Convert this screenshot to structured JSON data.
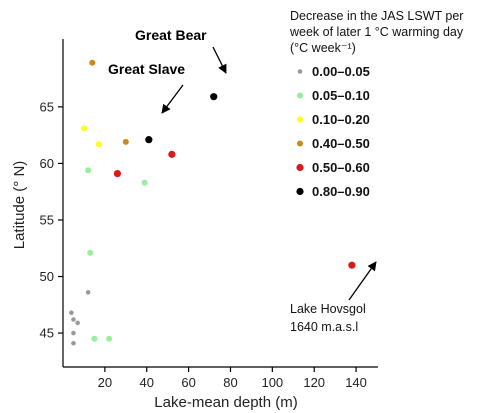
{
  "chart_data": {
    "type": "scatter",
    "xlabel": "Lake-mean depth (m)",
    "ylabel": "Latitude (° N)",
    "xlim": [
      0,
      150
    ],
    "ylim": [
      42,
      71
    ],
    "xticks": [
      20,
      40,
      60,
      80,
      100,
      120,
      140
    ],
    "yticks": [
      45,
      50,
      55,
      60,
      65
    ],
    "grid": false,
    "legend_placement": "top-right",
    "legend_title_lines": [
      "Decrease in the JAS LSWT per",
      "week of later 1 °C warming day",
      "(°C week⁻¹)"
    ],
    "series": [
      {
        "name": "0.00–0.05",
        "color": "#9a9a9a",
        "points": [
          [
            4,
            46.8
          ],
          [
            5,
            46.2
          ],
          [
            7,
            45.9
          ],
          [
            5,
            45.0
          ],
          [
            5,
            44.1
          ],
          [
            12,
            48.6
          ]
        ]
      },
      {
        "name": "0.05–0.10",
        "color": "#99ee99",
        "points": [
          [
            12,
            59.4
          ],
          [
            39,
            58.3
          ],
          [
            13,
            52.1
          ],
          [
            15,
            44.5
          ],
          [
            22,
            44.5
          ]
        ]
      },
      {
        "name": "0.10–0.20",
        "color": "#ffff11",
        "points": [
          [
            10,
            63.1
          ],
          [
            17,
            61.7
          ]
        ]
      },
      {
        "name": "0.40–0.50",
        "color": "#cc8820",
        "points": [
          [
            14,
            68.9
          ],
          [
            30,
            61.9
          ]
        ]
      },
      {
        "name": "0.50–0.60",
        "color": "#dd1a1a",
        "points": [
          [
            26,
            59.1
          ],
          [
            52,
            60.8
          ],
          [
            138,
            51.0
          ]
        ]
      },
      {
        "name": "0.80–0.90",
        "color": "#000000",
        "points": [
          [
            41,
            62.1
          ],
          [
            72,
            65.9
          ]
        ]
      }
    ],
    "annotations": [
      {
        "text": "Great Bear",
        "style": "bold",
        "target": [
          72,
          65.9
        ]
      },
      {
        "text": "Great Slave",
        "style": "bold",
        "target": [
          41,
          62.1
        ]
      },
      {
        "text_lines": [
          "Lake Hovsgol",
          "1640 m.a.s.l"
        ],
        "style": "plain",
        "target": [
          138,
          51.0
        ]
      }
    ]
  }
}
